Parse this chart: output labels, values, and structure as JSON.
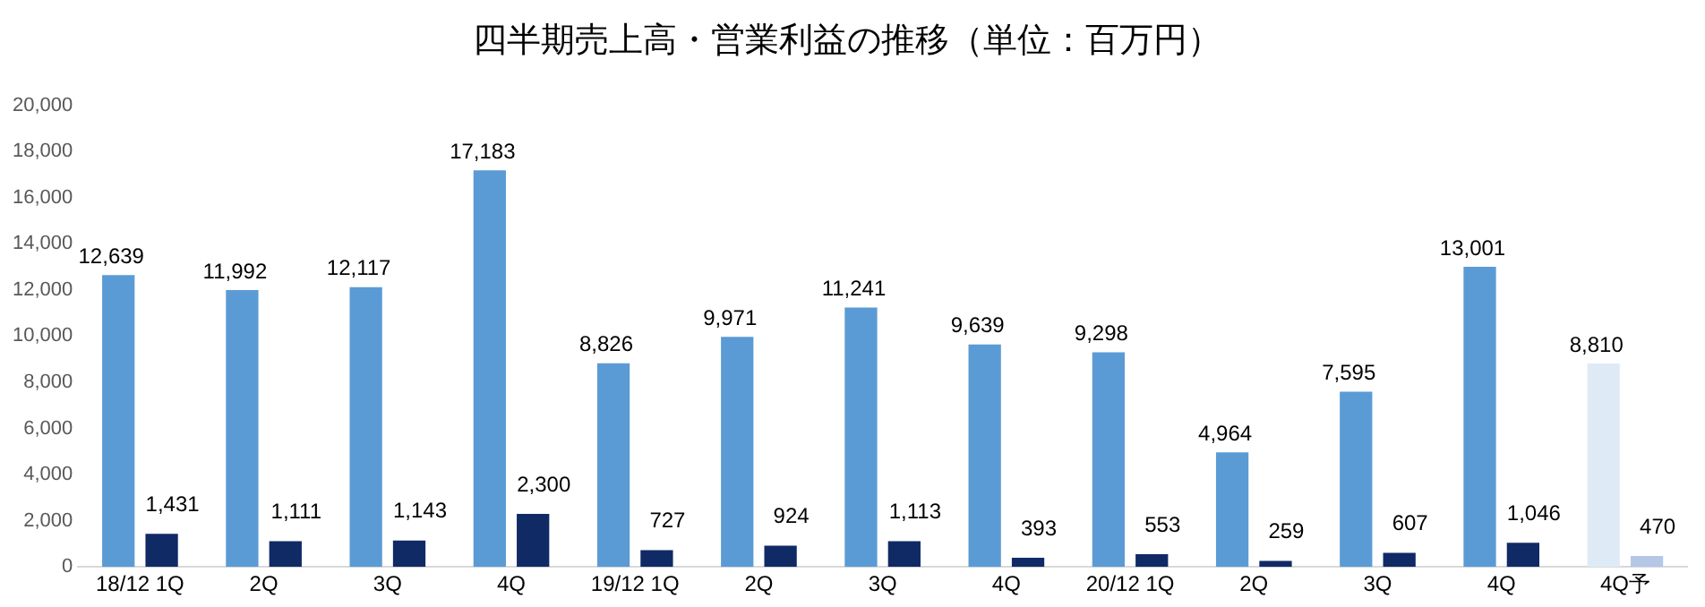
{
  "chart_data": {
    "type": "bar",
    "title": "四半期売上高・営業利益の推移（単位：百万円）",
    "categories": [
      "18/12 1Q",
      "2Q",
      "3Q",
      "4Q",
      "19/12 1Q",
      "2Q",
      "3Q",
      "4Q",
      "20/12 1Q",
      "2Q",
      "3Q",
      "4Q",
      "4Q予"
    ],
    "series": [
      {
        "colors": [
          "#5b9bd5",
          "#5b9bd5",
          "#5b9bd5",
          "#5b9bd5",
          "#5b9bd5",
          "#5b9bd5",
          "#5b9bd5",
          "#5b9bd5",
          "#5b9bd5",
          "#5b9bd5",
          "#5b9bd5",
          "#5b9bd5",
          "#deebf7"
        ],
        "values": [
          12639,
          11992,
          12117,
          17183,
          8826,
          9971,
          11241,
          9639,
          9298,
          4964,
          7595,
          13001,
          8810
        ],
        "value_labels": [
          "12,639",
          "11,992",
          "12,117",
          "17,183",
          "8,826",
          "9,971",
          "11,241",
          "9,639",
          "9,298",
          "4,964",
          "7,595",
          "13,001",
          "8,810"
        ]
      },
      {
        "colors": [
          "#102a66",
          "#102a66",
          "#102a66",
          "#102a66",
          "#102a66",
          "#102a66",
          "#102a66",
          "#102a66",
          "#102a66",
          "#102a66",
          "#102a66",
          "#102a66",
          "#b4c7e7"
        ],
        "values": [
          1431,
          1111,
          1143,
          2300,
          727,
          924,
          1113,
          393,
          553,
          259,
          607,
          1046,
          470
        ],
        "value_labels": [
          "1,431",
          "1,111",
          "1,143",
          "2,300",
          "727",
          "924",
          "1,113",
          "393",
          "553",
          "259",
          "607",
          "1,046",
          "470"
        ]
      }
    ],
    "ylim": [
      0,
      20000
    ],
    "yticks": [
      0,
      {
        "value": 2000,
        "label": "2,000"
      },
      {
        "value": 4000,
        "label": "4,000"
      },
      {
        "value": 6000,
        "label": "6,000"
      },
      {
        "value": 8000,
        "label": "8,000"
      },
      {
        "value": 10000,
        "label": "10,000"
      },
      {
        "value": 12000,
        "label": "12,000"
      },
      {
        "value": 14000,
        "label": "14,000"
      },
      {
        "value": 16000,
        "label": "16,000"
      },
      {
        "value": 18000,
        "label": "18,000"
      },
      {
        "value": 20000,
        "label": "20,000"
      }
    ],
    "grid": false,
    "legend": false
  }
}
